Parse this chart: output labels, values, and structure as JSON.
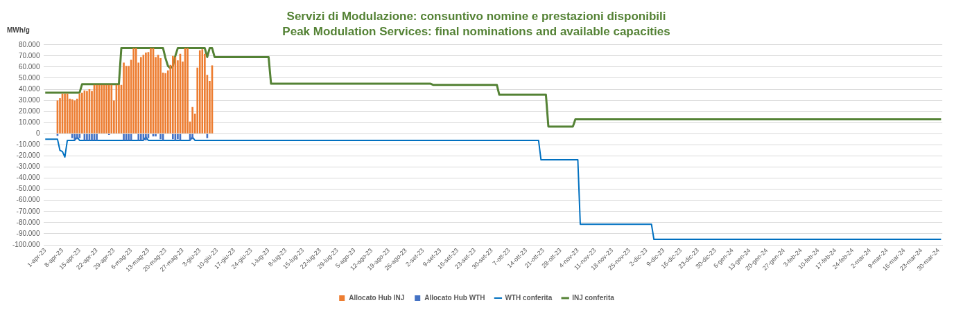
{
  "chart_data": {
    "type": "bar",
    "title": "Servizi di Modulazione: consuntivo nomine e prestazioni disponibili",
    "subtitle": "Peak Modulation Services: final nominations and available capacities",
    "ylabel": "MWh/g",
    "categories": [
      "1-apr-23",
      null,
      null,
      null,
      null,
      null,
      null,
      "8-apr-23",
      null,
      null,
      null,
      null,
      null,
      null,
      "15-apr-23",
      null,
      null,
      null,
      null,
      null,
      null,
      "22-apr-23",
      null,
      null,
      null,
      null,
      null,
      null,
      "29-apr-23",
      null,
      null,
      null,
      null,
      null,
      null,
      "6-mag-23",
      null,
      null,
      null,
      null,
      null,
      null,
      "13-mag-23",
      null,
      null,
      null,
      null,
      null,
      null,
      "20-mag-23",
      null,
      null,
      null,
      null,
      null,
      null,
      "27-mag-23",
      null,
      null,
      null,
      null,
      null,
      null,
      "3-giu-23",
      null,
      null,
      null,
      null,
      null,
      null,
      "10-giu-23",
      null,
      null,
      null,
      null,
      null,
      null,
      "17-giu-23",
      null,
      null,
      null,
      null,
      null,
      null,
      "24-giu-23",
      null,
      null,
      null,
      null,
      null,
      null,
      "1-lug-23",
      null,
      null,
      null,
      null,
      null,
      null,
      "8-lug-23",
      null,
      null,
      null,
      null,
      null,
      null,
      "15-lug-23",
      null,
      null,
      null,
      null,
      null,
      null,
      "22-lug-23",
      null,
      null,
      null,
      null,
      null,
      null,
      "29-lug-23",
      null,
      null,
      null,
      null,
      null,
      null,
      "5-ago-23",
      null,
      null,
      null,
      null,
      null,
      null,
      "12-ago-23",
      null,
      null,
      null,
      null,
      null,
      null,
      "19-ago-23",
      null,
      null,
      null,
      null,
      null,
      null,
      "26-ago-23",
      null,
      null,
      null,
      null,
      null,
      null,
      "2-set-23",
      null,
      null,
      null,
      null,
      null,
      null,
      "9-set-23",
      null,
      null,
      null,
      null,
      null,
      null,
      "16-set-23",
      null,
      null,
      null,
      null,
      null,
      null,
      "23-set-23",
      null,
      null,
      null,
      null,
      null,
      null,
      "30-set-23",
      null,
      null,
      null,
      null,
      null,
      null,
      "7-ott-23",
      null,
      null,
      null,
      null,
      null,
      null,
      "14-ott-23",
      null,
      null,
      null,
      null,
      null,
      null,
      "21-ott-23",
      null,
      null,
      null,
      null,
      null,
      null,
      "28-ott-23",
      null,
      null,
      null,
      null,
      null,
      null,
      "4-nov-23",
      null,
      null,
      null,
      null,
      null,
      null,
      "11-nov-23",
      null,
      null,
      null,
      null,
      null,
      null,
      "18-nov-23",
      null,
      null,
      null,
      null,
      null,
      null,
      "25-nov-23",
      null,
      null,
      null,
      null,
      null,
      null,
      "2-dic-23",
      null,
      null,
      null,
      null,
      null,
      null,
      "9-dic-23",
      null,
      null,
      null,
      null,
      null,
      null,
      "16-dic-23",
      null,
      null,
      null,
      null,
      null,
      null,
      "23-dic-23",
      null,
      null,
      null,
      null,
      null,
      null,
      "30-dic-23",
      null,
      null,
      null,
      null,
      null,
      null,
      "6-gen-24",
      null,
      null,
      null,
      null,
      null,
      null,
      "13-gen-24",
      null,
      null,
      null,
      null,
      null,
      null,
      "20-gen-24",
      null,
      null,
      null,
      null,
      null,
      null,
      "27-gen-24",
      null,
      null,
      null,
      null,
      null,
      null,
      "3-feb-24",
      null,
      null,
      null,
      null,
      null,
      null,
      "10-feb-24",
      null,
      null,
      null,
      null,
      null,
      null,
      "17-feb-24",
      null,
      null,
      null,
      null,
      null,
      null,
      "24-feb-24",
      null,
      null,
      null,
      null,
      null,
      null,
      "2-mar-24",
      null,
      null,
      null,
      null,
      null,
      null,
      "9-mar-24",
      null,
      null,
      null,
      null,
      null,
      null,
      "16-mar-24",
      null,
      null,
      null,
      null,
      null,
      null,
      "23-mar-24",
      null,
      null,
      null,
      null,
      null,
      null,
      "30-mar-24",
      null
    ],
    "series": [
      {
        "name": "Allocato Hub INJ",
        "color": "#ed7d31",
        "values": [
          null,
          null,
          null,
          null,
          null,
          30000,
          32000,
          36000,
          36000,
          36000,
          31500,
          31000,
          30000,
          31500,
          36000,
          37000,
          39000,
          38500,
          40000,
          38500,
          44000,
          44000,
          44000,
          44000,
          44000,
          44000,
          44000,
          44000,
          30000,
          44000,
          44000,
          44000,
          64000,
          61000,
          61000,
          66500,
          77000,
          77000,
          64000,
          69000,
          71000,
          73000,
          73500,
          77000,
          77000,
          69000,
          71000,
          68000,
          55000,
          54500,
          57000,
          62000,
          70000,
          69000,
          66000,
          72000,
          65000,
          77000,
          77000,
          11000,
          24000,
          18000,
          59500,
          75000,
          76000,
          72000,
          53000,
          47500,
          61500,
          null,
          null,
          null,
          null,
          null,
          null,
          null,
          null,
          null,
          null,
          null,
          null,
          null,
          null,
          null,
          null,
          null,
          null,
          null,
          null,
          null,
          null,
          null,
          null,
          null,
          null,
          null,
          null,
          null,
          null,
          null,
          null,
          null,
          null,
          null,
          null,
          null,
          null,
          null,
          null,
          null,
          null,
          null,
          null,
          null,
          null,
          null,
          null,
          null,
          null,
          null,
          null,
          null,
          null,
          null,
          null,
          null,
          null,
          null,
          null,
          null,
          null,
          null,
          null,
          null,
          null,
          null,
          null,
          null,
          null,
          null,
          null,
          null,
          null,
          null,
          null,
          null,
          null,
          null,
          null,
          null,
          null,
          null,
          null,
          null,
          null,
          null,
          null,
          null,
          null,
          null,
          null,
          null,
          null,
          null,
          null,
          null,
          null,
          null,
          null,
          null,
          null,
          null,
          null,
          null,
          null,
          null,
          null,
          null,
          null,
          null,
          null,
          null,
          null,
          null,
          null,
          null,
          null,
          null,
          null,
          null,
          null,
          null,
          null,
          null,
          null,
          null,
          null,
          null,
          null,
          null,
          null,
          null,
          null,
          null,
          null,
          null,
          null,
          null,
          null,
          null,
          null,
          null,
          null,
          null,
          null,
          null,
          null,
          null,
          null,
          null,
          null,
          null,
          null,
          null,
          null,
          null,
          null,
          null,
          null,
          null,
          null,
          null,
          null,
          null,
          null,
          null,
          null,
          null,
          null,
          null,
          null,
          null,
          null,
          null,
          null,
          null,
          null,
          null,
          null,
          null,
          null,
          null,
          null,
          null,
          null,
          null,
          null,
          null,
          null,
          null,
          null,
          null,
          null,
          null,
          null,
          null,
          null,
          null,
          null,
          null,
          null,
          null,
          null,
          null,
          null,
          null,
          null,
          null,
          null,
          null,
          null,
          null,
          null,
          null,
          null,
          null,
          null,
          null,
          null,
          null,
          null,
          null,
          null,
          null,
          null,
          null,
          null,
          null,
          null,
          null,
          null,
          null,
          null,
          null,
          null,
          null,
          null,
          null,
          null,
          null,
          null,
          null,
          null,
          null,
          null,
          null,
          null,
          null,
          null,
          null,
          null,
          null,
          null,
          null,
          null,
          null,
          null,
          null,
          null,
          null,
          null,
          null,
          null,
          null,
          null,
          null,
          null,
          null,
          null,
          null,
          null,
          null,
          null,
          null,
          null,
          null,
          null,
          null,
          null,
          null,
          null,
          null,
          null,
          null,
          null,
          null,
          null,
          null,
          null,
          null,
          null,
          null,
          null,
          null,
          null,
          null
        ]
      },
      {
        "name": "Allocato Hub WTH",
        "color": "#4472c4",
        "values": [
          null,
          null,
          null,
          null,
          null,
          -2000,
          null,
          null,
          null,
          null,
          null,
          -4000,
          -6000,
          -5000,
          -4000,
          null,
          -6000,
          -6000,
          -6000,
          -6000,
          -6000,
          -6000,
          null,
          null,
          null,
          null,
          -1000,
          null,
          null,
          null,
          null,
          null,
          -6000,
          -6000,
          -6000,
          -6000,
          null,
          null,
          -6000,
          -6000,
          -6000,
          -6000,
          -4000,
          null,
          -2500,
          -2500,
          null,
          -5000,
          -6000,
          null,
          null,
          null,
          -5000,
          -6000,
          -5000,
          -6000,
          null,
          null,
          null,
          -6000,
          -5000,
          null,
          null,
          null,
          null,
          null,
          -4000,
          null,
          null,
          null,
          null,
          null,
          null,
          null,
          null,
          null,
          null,
          null,
          null,
          null,
          null,
          null,
          null,
          null,
          null,
          null,
          null,
          null,
          null,
          null,
          null,
          null,
          null,
          null,
          null,
          null,
          null,
          null,
          null,
          null,
          null,
          null,
          null,
          null,
          null,
          null,
          null,
          null,
          null,
          null,
          null,
          null,
          null,
          null,
          null,
          null,
          null,
          null,
          null,
          null,
          null,
          null,
          null,
          null,
          null,
          null,
          null,
          null,
          null,
          null,
          null,
          null,
          null,
          null,
          null,
          null,
          null,
          null,
          null,
          null,
          null,
          null,
          null,
          null,
          null,
          null,
          null,
          null,
          null,
          null,
          null,
          null,
          null,
          null,
          null,
          null,
          null,
          null,
          null,
          null,
          null,
          null,
          null,
          null,
          null,
          null,
          null,
          null,
          null,
          null,
          null,
          null,
          null,
          null,
          null,
          null,
          null,
          null,
          null,
          null,
          null,
          null,
          null,
          null,
          null,
          null,
          null,
          null,
          null,
          null,
          null,
          null,
          null,
          null,
          null,
          null,
          null,
          null,
          null,
          null,
          null,
          null,
          null,
          null,
          null,
          null,
          null,
          null,
          null,
          null,
          null,
          null,
          null,
          null,
          null,
          null,
          null,
          null,
          null,
          null,
          null,
          null,
          null,
          null,
          null,
          null,
          null,
          null,
          null,
          null,
          null,
          null,
          null,
          null,
          null,
          null,
          null,
          null,
          null,
          null,
          null,
          null,
          null,
          null,
          null,
          null,
          null,
          null,
          null,
          null,
          null,
          null,
          null,
          null,
          null,
          null,
          null,
          null,
          null,
          null,
          null,
          null,
          null,
          null,
          null,
          null,
          null,
          null,
          null,
          null,
          null,
          null,
          null,
          null,
          null,
          null,
          null,
          null,
          null,
          null,
          null,
          null,
          null,
          null,
          null,
          null,
          null,
          null,
          null,
          null,
          null,
          null,
          null,
          null,
          null,
          null,
          null,
          null,
          null,
          null,
          null,
          null,
          null,
          null,
          null,
          null,
          null,
          null,
          null,
          null,
          null,
          null,
          null,
          null,
          null,
          null,
          null,
          null,
          null,
          null,
          null,
          null,
          null,
          null,
          null,
          null,
          null,
          null,
          null,
          null,
          null,
          null,
          null,
          null,
          null,
          null,
          null,
          null,
          null,
          null,
          null,
          null,
          null,
          null,
          null,
          null,
          null,
          null,
          null,
          null,
          null,
          null,
          null,
          null,
          null,
          null,
          null,
          null,
          null,
          null,
          null,
          null,
          null,
          null,
          null,
          null
        ]
      },
      {
        "name": "WTH conferita",
        "type": "line",
        "color": "#0070c0",
        "values": [
          -5000,
          -5000,
          -5000,
          -5000,
          -5000,
          -5000,
          -15000,
          -16000,
          -21000,
          -6000,
          -6000,
          -6000,
          -6000,
          -3000,
          -6000,
          -6000,
          -6000,
          -6000,
          -6000,
          -6000,
          -6000,
          -6000,
          -6000,
          -6000,
          -6000,
          -6000,
          -6000,
          -6000,
          -6000,
          -6000,
          -6000,
          -6000,
          -6000,
          -6000,
          -6000,
          -6000,
          -6000,
          -6000,
          -6000,
          -6000,
          -6000,
          -3000,
          -6000,
          -6000,
          -6000,
          -6000,
          -6000,
          -6000,
          -6000,
          -6000,
          -6000,
          -6000,
          -6000,
          -6000,
          -6000,
          -6000,
          -6000,
          -6000,
          -6000,
          -6000,
          -3000,
          -6000,
          -6000,
          -6000,
          -6000,
          -6000,
          -6000,
          -6000,
          -6000,
          -6000,
          -6000,
          -6000,
          -6000,
          -6000,
          -6000,
          -6000,
          -6000,
          -6000,
          -6000,
          -6000,
          -6000,
          -6000,
          -6000,
          -6000,
          -6000,
          -6000,
          -6000,
          -6000,
          -6000,
          -6000,
          -6000,
          -6000,
          -6000,
          -6000,
          -6000,
          -6000,
          -6000,
          -6000,
          -6000,
          -6000,
          -6000,
          -6000,
          -6000,
          -6000,
          -6000,
          -6000,
          -6000,
          -6000,
          -6000,
          -6000,
          -6000,
          -6000,
          -6000,
          -6000,
          -6000,
          -6000,
          -6000,
          -6000,
          -6000,
          -6000,
          -6000,
          -6000,
          -6000,
          -6000,
          -6000,
          -6000,
          -6000,
          -6000,
          -6000,
          -6000,
          -6000,
          -6000,
          -6000,
          -6000,
          -6000,
          -6000,
          -6000,
          -6000,
          -6000,
          -6000,
          -6000,
          -6000,
          -6000,
          -6000,
          -6000,
          -6000,
          -6000,
          -6000,
          -6000,
          -6000,
          -6000,
          -6000,
          -6000,
          -6000,
          -6000,
          -6000,
          -6000,
          -6000,
          -6000,
          -6000,
          -6000,
          -6000,
          -6000,
          -6000,
          -6000,
          -6000,
          -6000,
          -6000,
          -6000,
          -6000,
          -6000,
          -6000,
          -6000,
          -6000,
          -6000,
          -6000,
          -6000,
          -6000,
          -6000,
          -6000,
          -6000,
          -6000,
          -6000,
          -6000,
          -6000,
          -6000,
          -6000,
          -6000,
          -6000,
          -6000,
          -6000,
          -6000,
          -6000,
          -6000,
          -6000,
          -6000,
          -6000,
          -6000,
          -6000,
          -6000,
          -6000,
          -6000,
          -23500,
          -23500,
          -23500,
          -23500,
          -23500,
          -23500,
          -23500,
          -23500,
          -23500,
          -23500,
          -23500,
          -23500,
          -23500,
          -23500,
          -23500,
          -23500,
          -81500,
          -81500,
          -81500,
          -81500,
          -81500,
          -81500,
          -81500,
          -81500,
          -81500,
          -81500,
          -81500,
          -81500,
          -81500,
          -81500,
          -81500,
          -81500,
          -81500,
          -81500,
          -81500,
          -81500,
          -81500,
          -81500,
          -81500,
          -81500,
          -81500,
          -81500,
          -81500,
          -81500,
          -81500,
          -81500,
          -95000,
          -95000,
          -95000,
          -95000,
          -95000,
          -95000,
          -95000,
          -95000,
          -95000,
          -95000,
          -95000,
          -95000,
          -95000,
          -95000,
          -95000,
          -95000,
          -95000,
          -95000,
          -95000,
          -95000,
          -95000,
          -95000,
          -95000,
          -95000,
          -95000,
          -95000,
          -95000,
          -95000,
          -95000,
          -95000,
          -95000,
          -95000,
          -95000,
          -95000,
          -95000,
          -95000,
          -95000,
          -95000,
          -95000,
          -95000,
          -95000,
          -95000,
          -95000,
          -95000,
          -95000,
          -95000,
          -95000,
          -95000,
          -95000,
          -95000,
          -95000,
          -95000,
          -95000,
          -95000,
          -95000,
          -95000,
          -95000,
          -95000,
          -95000,
          -95000,
          -95000,
          -95000,
          -95000,
          -95000,
          -95000,
          -95000,
          -95000,
          -95000,
          -95000,
          -95000,
          -95000,
          -95000,
          -95000,
          -95000,
          -95000,
          -95000,
          -95000,
          -95000,
          -95000,
          -95000,
          -95000,
          -95000,
          -95000,
          -95000,
          -95000,
          -95000,
          -95000,
          -95000,
          -95000,
          -95000,
          -95000,
          -95000,
          -95000,
          -95000,
          -95000,
          -95000,
          -95000,
          -95000,
          -95000,
          -95000,
          -95000,
          -95000,
          -95000,
          -95000,
          -95000,
          -95000,
          -95000,
          -95000,
          -95000,
          -95000,
          -95000,
          -95000,
          -95000,
          -95000,
          -95000,
          -95000,
          -95000,
          -95000
        ]
      },
      {
        "name": "INJ conferita",
        "type": "line",
        "color": "#548235",
        "values": [
          37000,
          37000,
          37000,
          37000,
          37000,
          37000,
          37000,
          37000,
          37000,
          37000,
          37000,
          37000,
          37000,
          37000,
          37000,
          44500,
          44500,
          44500,
          44500,
          44500,
          44500,
          44500,
          44500,
          44500,
          44500,
          44500,
          44500,
          44500,
          44500,
          44500,
          44500,
          77000,
          77000,
          77000,
          77000,
          77000,
          77000,
          77000,
          77000,
          77000,
          77000,
          77000,
          77000,
          77000,
          77000,
          77000,
          77000,
          77000,
          77000,
          68000,
          61000,
          59000,
          61000,
          70000,
          77000,
          77000,
          77000,
          77000,
          77000,
          77000,
          77000,
          77000,
          77000,
          77000,
          77000,
          77000,
          69000,
          77000,
          77000,
          69000,
          69000,
          69000,
          69000,
          69000,
          69000,
          69000,
          69000,
          69000,
          69000,
          69000,
          69000,
          69000,
          69000,
          69000,
          69000,
          69000,
          69000,
          69000,
          69000,
          69000,
          69000,
          69000,
          45000,
          45000,
          45000,
          45000,
          45000,
          45000,
          45000,
          45000,
          45000,
          45000,
          45000,
          45000,
          45000,
          45000,
          45000,
          45000,
          45000,
          45000,
          45000,
          45000,
          45000,
          45000,
          45000,
          45000,
          45000,
          45000,
          45000,
          45000,
          45000,
          45000,
          45000,
          45000,
          45000,
          45000,
          45000,
          45000,
          45000,
          45000,
          45000,
          45000,
          45000,
          45000,
          45000,
          45000,
          45000,
          45000,
          45000,
          45000,
          45000,
          45000,
          45000,
          45000,
          45000,
          45000,
          45000,
          45000,
          45000,
          45000,
          45000,
          45000,
          45000,
          45000,
          45000,
          45000,
          45000,
          45000,
          44000,
          44000,
          44000,
          44000,
          44000,
          44000,
          44000,
          44000,
          44000,
          44000,
          44000,
          44000,
          44000,
          44000,
          44000,
          44000,
          44000,
          44000,
          44000,
          44000,
          44000,
          44000,
          44000,
          44000,
          44000,
          44000,
          44000,
          35000,
          35000,
          35000,
          35000,
          35000,
          35000,
          35000,
          35000,
          35000,
          35000,
          35000,
          35000,
          35000,
          35000,
          35000,
          35000,
          35000,
          35000,
          35000,
          35000,
          6500,
          6500,
          6500,
          6500,
          6500,
          6500,
          6500,
          6500,
          6500,
          6500,
          6500,
          13000,
          13000,
          13000,
          13000,
          13000,
          13000,
          13000,
          13000,
          13000,
          13000,
          13000,
          13000,
          13000,
          13000,
          13000,
          13000,
          13000,
          13000,
          13000,
          13000,
          13000,
          13000,
          13000,
          13000,
          13000,
          13000,
          13000,
          13000,
          13000,
          13000,
          13000,
          13000,
          13000,
          13000,
          13000,
          13000,
          13000,
          13000,
          13000,
          13000,
          13000,
          13000,
          13000,
          13000,
          13000,
          13000,
          13000,
          13000,
          13000,
          13000,
          13000,
          13000,
          13000,
          13000,
          13000,
          13000,
          13000,
          13000,
          13000,
          13000,
          13000,
          13000,
          13000,
          13000,
          13000,
          13000,
          13000,
          13000,
          13000,
          13000,
          13000,
          13000,
          13000,
          13000,
          13000,
          13000,
          13000,
          13000,
          13000,
          13000,
          13000,
          13000,
          13000,
          13000,
          13000,
          13000,
          13000,
          13000,
          13000,
          13000,
          13000,
          13000,
          13000,
          13000,
          13000,
          13000,
          13000,
          13000,
          13000,
          13000,
          13000,
          13000,
          13000,
          13000,
          13000,
          13000,
          13000,
          13000,
          13000,
          13000,
          13000,
          13000,
          13000,
          13000,
          13000,
          13000,
          13000,
          13000,
          13000,
          13000,
          13000,
          13000,
          13000,
          13000,
          13000,
          13000,
          13000,
          13000,
          13000,
          13000,
          13000,
          13000,
          13000,
          13000,
          13000,
          13000,
          13000,
          13000,
          13000,
          13000,
          13000,
          13000,
          13000,
          13000,
          13000,
          13000,
          13000,
          13000,
          13000,
          13000
        ]
      }
    ],
    "stacked": true,
    "ylim": [
      -100000,
      80000
    ],
    "yticks": [
      {
        "value": -100000,
        "label": "-100.000"
      },
      {
        "value": -90000,
        "label": "-90.000"
      },
      {
        "value": -80000,
        "label": "-80.000"
      },
      {
        "value": -70000,
        "label": "-70.000"
      },
      {
        "value": -60000,
        "label": "-60.000"
      },
      {
        "value": -50000,
        "label": "-50.000"
      },
      {
        "value": -40000,
        "label": "-40.000"
      },
      {
        "value": -30000,
        "label": "-30.000"
      },
      {
        "value": -20000,
        "label": "-20.000"
      },
      {
        "value": -10000,
        "label": "-10.000"
      },
      0,
      {
        "value": 10000,
        "label": "10.000"
      },
      {
        "value": 20000,
        "label": "20.000"
      },
      {
        "value": 30000,
        "label": "30.000"
      },
      {
        "value": 40000,
        "label": "40.000"
      },
      {
        "value": 50000,
        "label": "50.000"
      },
      {
        "value": 60000,
        "label": "60.000"
      },
      {
        "value": 70000,
        "label": "70.000"
      },
      {
        "value": 80000,
        "label": "80.000"
      }
    ],
    "grid": "y",
    "legend": "bottom",
    "marker": "none"
  }
}
